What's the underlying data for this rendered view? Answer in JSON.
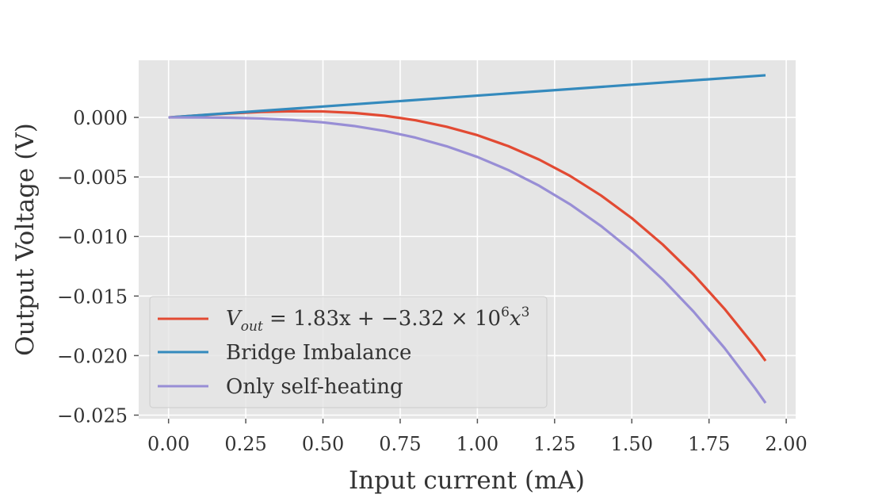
{
  "chart_data": {
    "type": "line",
    "xlabel": "Input current (mA)",
    "ylabel": "Output Voltage (V)",
    "xlim": [
      -0.0967,
      2.0305
    ],
    "ylim": [
      -0.0253,
      0.0048
    ],
    "grid": true,
    "style": "ggplot",
    "legend_position": "lower-left",
    "x_ticks": [
      {
        "value": 0.0,
        "label": "0.00"
      },
      {
        "value": 0.25,
        "label": "0.25"
      },
      {
        "value": 0.5,
        "label": "0.50"
      },
      {
        "value": 0.75,
        "label": "0.75"
      },
      {
        "value": 1.0,
        "label": "1.00"
      },
      {
        "value": 1.25,
        "label": "1.25"
      },
      {
        "value": 1.5,
        "label": "1.50"
      },
      {
        "value": 1.75,
        "label": "1.75"
      },
      {
        "value": 2.0,
        "label": "2.00"
      }
    ],
    "y_ticks": [
      {
        "value": 0.0,
        "label": "0.000"
      },
      {
        "value": -0.005,
        "label": "−0.005"
      },
      {
        "value": -0.01,
        "label": "−0.010"
      },
      {
        "value": -0.015,
        "label": "−0.015"
      },
      {
        "value": -0.02,
        "label": "−0.020"
      },
      {
        "value": -0.025,
        "label": "−0.025"
      }
    ],
    "series": [
      {
        "name": "Vout = 1.83x + −3.32 × 10^6 x^3",
        "color": "#E24A33",
        "x": [
          0.0,
          0.1,
          0.2,
          0.3,
          0.4,
          0.5,
          0.6,
          0.7,
          0.8,
          0.9,
          1.0,
          1.1,
          1.2,
          1.3,
          1.4,
          1.5,
          1.6,
          1.7,
          1.8,
          1.9,
          1.933
        ],
        "y": [
          0.0,
          0.00018,
          0.00034,
          0.00046,
          0.00052,
          0.0005,
          0.00038,
          0.00014,
          -0.00024,
          -0.00078,
          -0.00149,
          -0.00241,
          -0.00354,
          -0.00491,
          -0.00655,
          -0.00846,
          -0.01067,
          -0.0132,
          -0.01607,
          -0.01929,
          -0.02044
        ]
      },
      {
        "name": "Bridge Imbalance",
        "color": "#348ABD",
        "x": [
          0.0,
          1.933
        ],
        "y": [
          0.0,
          0.00354
        ]
      },
      {
        "name": "Only self-heating",
        "color": "#988ED5",
        "x": [
          0.0,
          0.1,
          0.2,
          0.3,
          0.4,
          0.5,
          0.6,
          0.7,
          0.8,
          0.9,
          1.0,
          1.1,
          1.2,
          1.3,
          1.4,
          1.5,
          1.6,
          1.7,
          1.8,
          1.9,
          1.933
        ],
        "y": [
          0.0,
          -3.3e-06,
          -2.7e-05,
          -9e-05,
          -0.000212,
          -0.000415,
          -0.000717,
          -0.001139,
          -0.0017,
          -0.00242,
          -0.00332,
          -0.004419,
          -0.005737,
          -0.007294,
          -0.00911,
          -0.011205,
          -0.013599,
          -0.016311,
          -0.019362,
          -0.022772,
          -0.02398
        ]
      }
    ],
    "legend": [
      {
        "series": 0,
        "label_parts": [
          "V",
          "out",
          " = 1.83x + −3.32 × 10",
          "6",
          "x",
          "3"
        ]
      },
      {
        "series": 1,
        "label": "Bridge Imbalance"
      },
      {
        "series": 2,
        "label": "Only self-heating"
      }
    ],
    "colors": {
      "plot_background": "#E5E5E5",
      "grid": "#FFFFFF",
      "tick_text": "#555555",
      "legend_background": "#E5E5E5",
      "legend_border": "#CCCCCC"
    }
  }
}
